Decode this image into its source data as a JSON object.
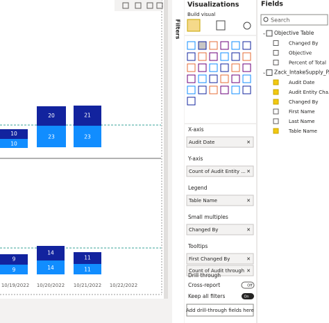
{
  "canvas": {
    "upper": [
      {
        "top": 10,
        "bottom": 10
      },
      {
        "top": 20,
        "bottom": 23
      },
      {
        "top": 21,
        "bottom": 23
      }
    ],
    "lower": [
      {
        "top": 9,
        "bottom": 9
      },
      {
        "top": 14,
        "bottom": 14
      },
      {
        "top": 11,
        "bottom": 11
      }
    ],
    "dates": [
      "10/19/2022",
      "10/20/2022",
      "10/21/2022",
      "10/22/2022"
    ]
  },
  "filters": {
    "label": "Filters"
  },
  "visualizations": {
    "title": "Visualizations",
    "subtitle": "Build visual",
    "wells": [
      {
        "label": "X-axis",
        "fields": [
          "Audit Date"
        ]
      },
      {
        "label": "Y-axis",
        "fields": [
          "Count of Audit Entity ..."
        ]
      },
      {
        "label": "Legend",
        "fields": [
          "Table Name"
        ]
      },
      {
        "label": "Small multiples",
        "fields": [
          "Changed By"
        ]
      },
      {
        "label": "Tooltips",
        "fields": [
          "First Changed By",
          "Count of Audit through"
        ]
      }
    ],
    "drill": {
      "title": "Drill through",
      "cross_report": "Cross-report",
      "cross_state": "Off",
      "keep": "Keep all filters",
      "keep_state": "On",
      "add": "Add drill-through fields here"
    }
  },
  "fields": {
    "title": "Fields",
    "search": "Search",
    "tables": [
      {
        "name": "Objective Table",
        "items": [
          {
            "name": "Changed By",
            "checked": false
          },
          {
            "name": "Objective",
            "checked": false
          },
          {
            "name": "Percent of Total",
            "checked": false
          }
        ]
      },
      {
        "name": "Zack_IntakeSupply_P...",
        "items": [
          {
            "name": "Audit Date",
            "checked": true
          },
          {
            "name": "Audit Entity Cha...",
            "checked": true
          },
          {
            "name": "Changed By",
            "checked": true
          },
          {
            "name": "First Name",
            "checked": false
          },
          {
            "name": "Last Name",
            "checked": false
          },
          {
            "name": "Table Name",
            "checked": true
          }
        ]
      }
    ]
  }
}
